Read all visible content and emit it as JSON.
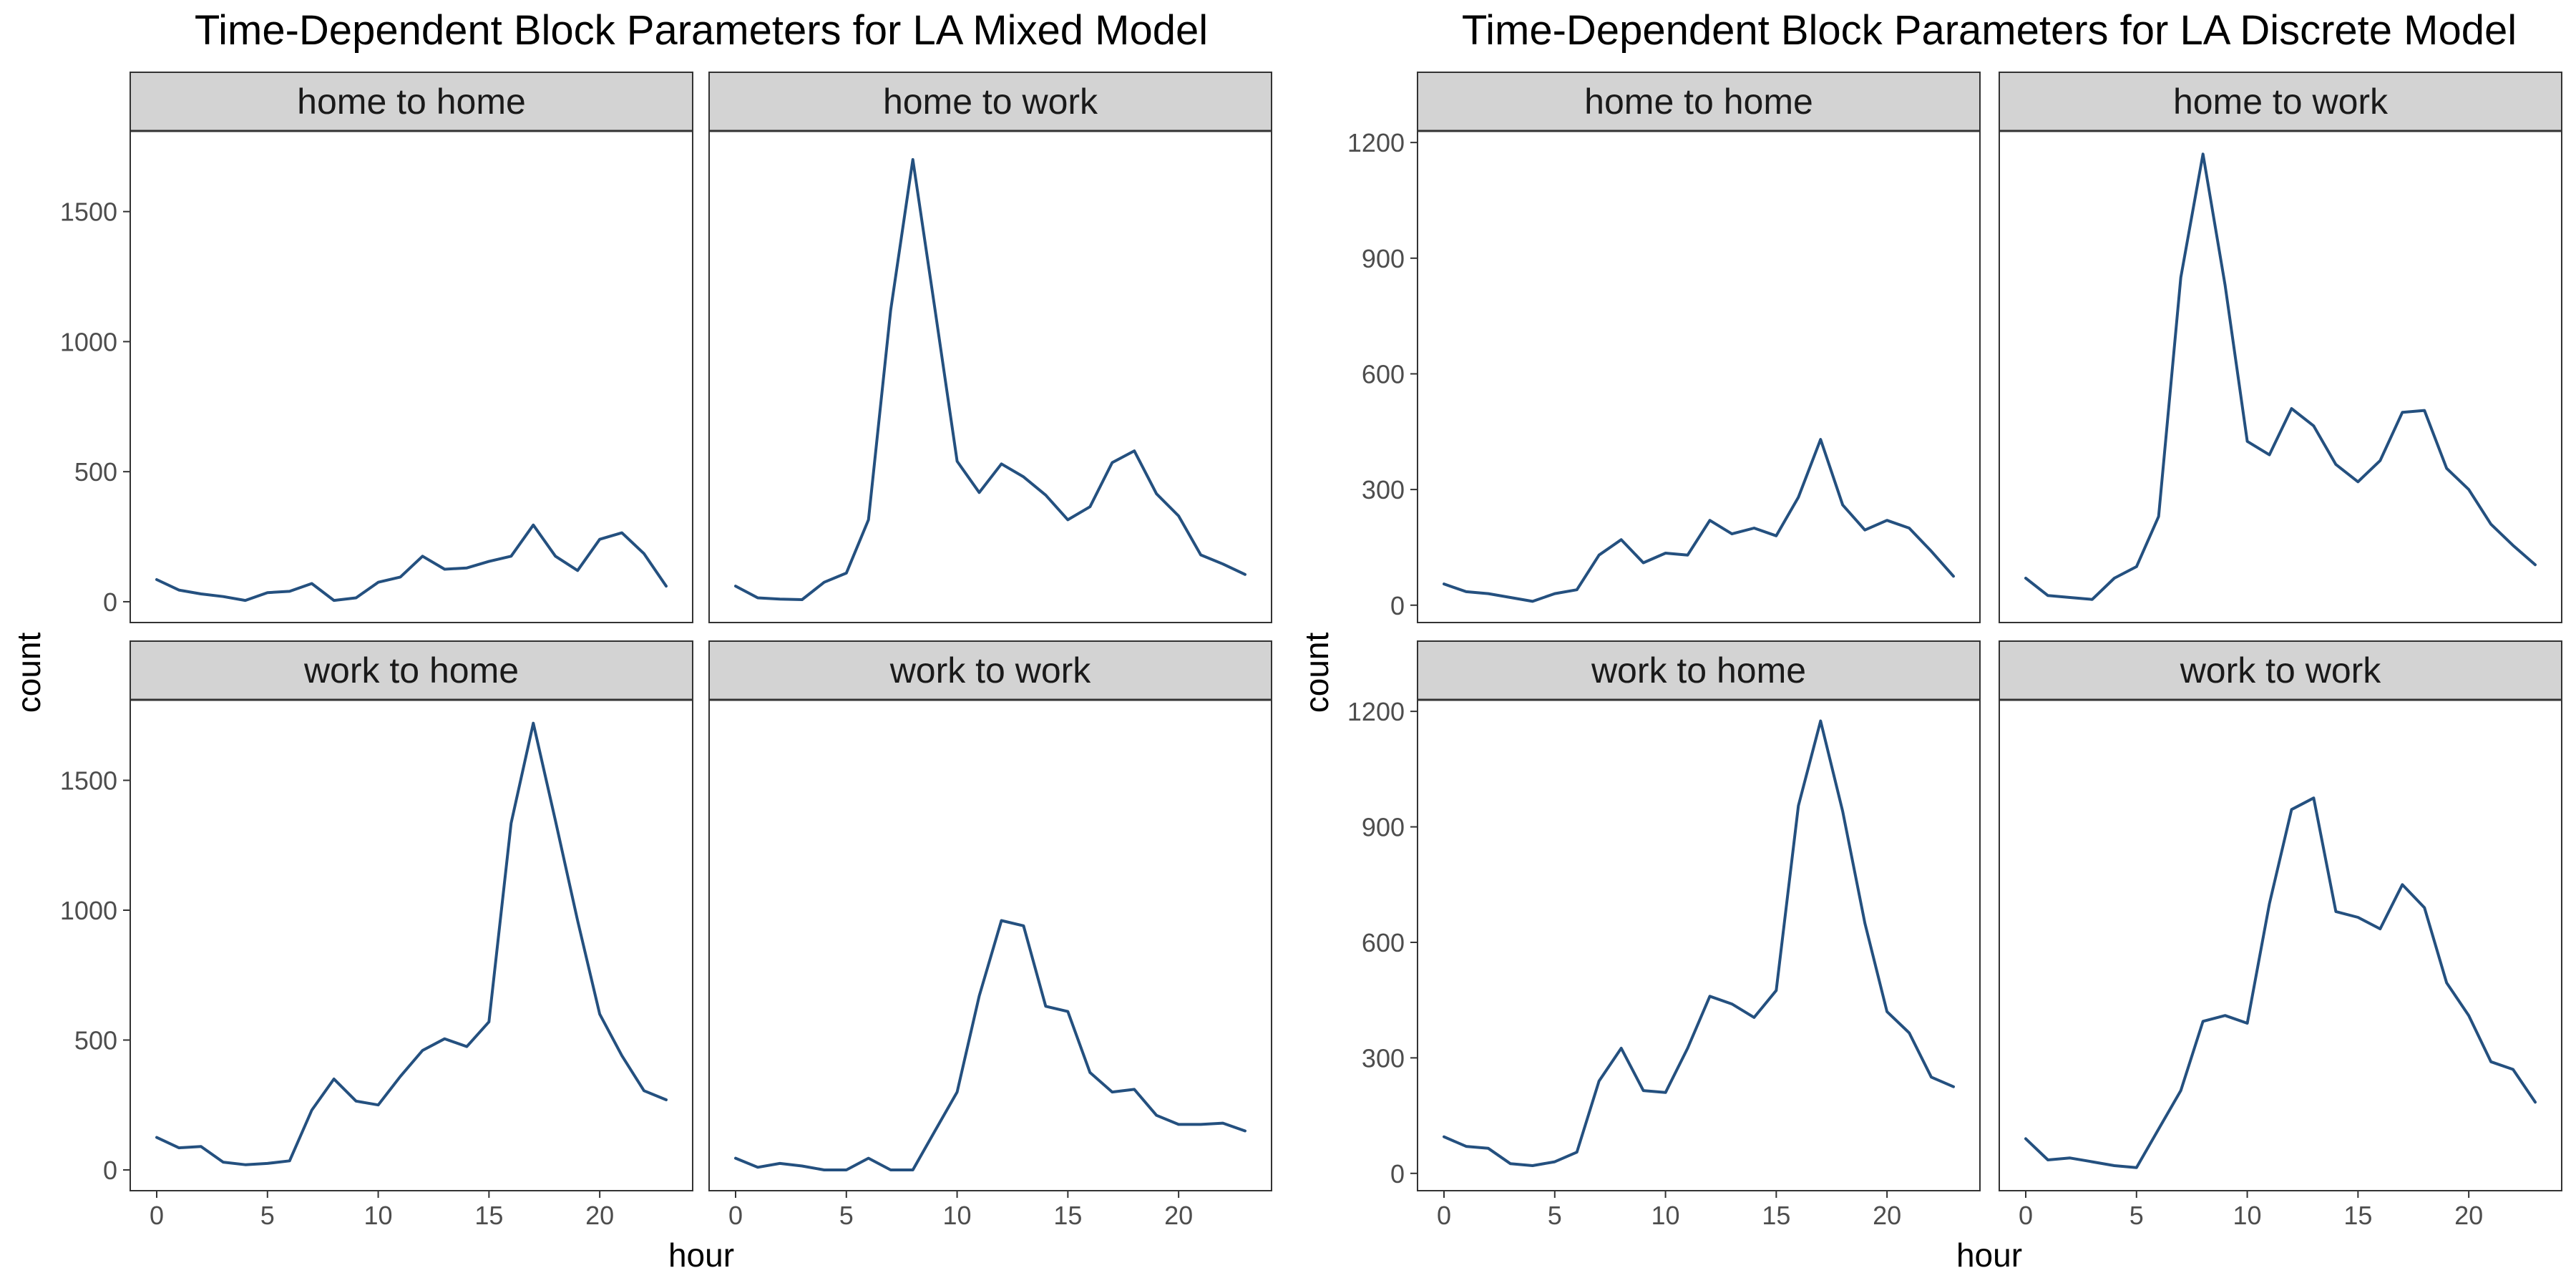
{
  "chart_data": [
    {
      "type": "line",
      "title": "Time-Dependent Block Parameters for LA Mixed Model",
      "xlabel": "hour",
      "ylabel": "count",
      "xlim": [
        0,
        23
      ],
      "ylim": [
        -80,
        1810
      ],
      "x_ticks": [
        0,
        5,
        10,
        15,
        20
      ],
      "y_ticks": [
        0,
        500,
        1000,
        1500
      ],
      "line_color": "#24507f",
      "x": [
        0,
        1,
        2,
        3,
        4,
        5,
        6,
        7,
        8,
        9,
        10,
        11,
        12,
        13,
        14,
        15,
        16,
        17,
        18,
        19,
        20,
        21,
        22,
        23
      ],
      "panels": [
        {
          "label": "home to home",
          "values": [
            85,
            45,
            30,
            20,
            5,
            35,
            40,
            70,
            5,
            15,
            75,
            95,
            175,
            125,
            130,
            155,
            175,
            295,
            175,
            120,
            240,
            265,
            185,
            60
          ]
        },
        {
          "label": "home to work",
          "values": [
            60,
            15,
            10,
            8,
            75,
            110,
            315,
            1120,
            1700,
            1125,
            540,
            420,
            530,
            480,
            410,
            315,
            365,
            535,
            580,
            415,
            330,
            180,
            145,
            105
          ]
        },
        {
          "label": "work to home",
          "values": [
            125,
            85,
            90,
            30,
            20,
            25,
            35,
            230,
            350,
            265,
            250,
            360,
            460,
            505,
            475,
            570,
            1335,
            1720,
            1345,
            960,
            600,
            440,
            305,
            270
          ]
        },
        {
          "label": "work to work",
          "values": [
            45,
            10,
            25,
            15,
            0,
            0,
            45,
            0,
            0,
            150,
            300,
            670,
            960,
            940,
            630,
            610,
            375,
            300,
            310,
            210,
            175,
            175,
            180,
            150
          ]
        }
      ]
    },
    {
      "type": "line",
      "title": "Time-Dependent Block Parameters for LA Discrete Model",
      "xlabel": "hour",
      "ylabel": "count",
      "xlim": [
        0,
        23
      ],
      "ylim": [
        -45,
        1230
      ],
      "x_ticks": [
        0,
        5,
        10,
        15,
        20
      ],
      "y_ticks": [
        0,
        300,
        600,
        900,
        1200
      ],
      "line_color": "#24507f",
      "x": [
        0,
        1,
        2,
        3,
        4,
        5,
        6,
        7,
        8,
        9,
        10,
        11,
        12,
        13,
        14,
        15,
        16,
        17,
        18,
        19,
        20,
        21,
        22,
        23
      ],
      "panels": [
        {
          "label": "home to home",
          "values": [
            55,
            35,
            30,
            20,
            10,
            30,
            40,
            130,
            170,
            110,
            135,
            130,
            220,
            185,
            200,
            180,
            280,
            430,
            260,
            195,
            220,
            200,
            140,
            75
          ]
        },
        {
          "label": "home to work",
          "values": [
            70,
            25,
            20,
            15,
            70,
            100,
            230,
            850,
            1170,
            830,
            425,
            390,
            510,
            465,
            365,
            320,
            375,
            500,
            505,
            355,
            300,
            210,
            155,
            105
          ]
        },
        {
          "label": "work to home",
          "values": [
            95,
            70,
            65,
            25,
            20,
            30,
            55,
            240,
            325,
            215,
            210,
            325,
            460,
            440,
            405,
            475,
            955,
            1175,
            940,
            650,
            420,
            365,
            250,
            225
          ]
        },
        {
          "label": "work to work",
          "values": [
            90,
            35,
            40,
            30,
            20,
            15,
            115,
            215,
            395,
            410,
            390,
            700,
            945,
            975,
            680,
            665,
            635,
            750,
            690,
            495,
            410,
            290,
            270,
            185
          ]
        }
      ]
    }
  ]
}
